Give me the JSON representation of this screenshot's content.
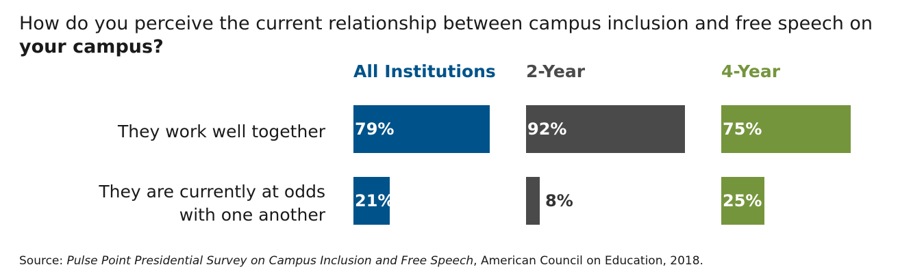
{
  "title": {
    "line1": "How do you perceive the current relationship between campus inclusion and free speech on",
    "line2": "your campus?"
  },
  "chart_data": {
    "type": "bar",
    "categories": [
      "They work well together",
      "They are currently at odds with one another"
    ],
    "category_lines": [
      [
        "They work well together"
      ],
      [
        "They are currently at odds",
        "with one another"
      ]
    ],
    "series": [
      {
        "name": "All Institutions",
        "color": "#00538a",
        "values": [
          79,
          21
        ],
        "labels": [
          "79%",
          "21%"
        ]
      },
      {
        "name": "2-Year",
        "color": "#4a4a4a",
        "values": [
          92,
          8
        ],
        "labels": [
          "92%",
          "8%"
        ]
      },
      {
        "name": "4-Year",
        "color": "#75953d",
        "values": [
          75,
          25
        ],
        "labels": [
          "75%",
          "25%"
        ]
      }
    ],
    "unit": "%",
    "ylim": [
      0,
      100
    ],
    "grid": false
  },
  "source": {
    "prefix": "Source: ",
    "title": "Pulse Point Presidential Survey on Campus Inclusion and Free Speech",
    "suffix": ", American Council on Education, 2018."
  }
}
